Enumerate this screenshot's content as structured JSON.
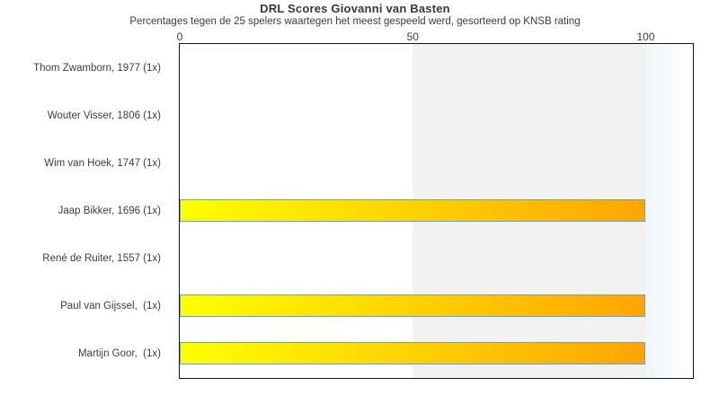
{
  "title": "DRL Scores Giovanni van Basten",
  "subtitle": "Percentages tegen de 25 spelers waartegen het meest gespeeld werd, gesorteerd op KNSB rating",
  "chart_data": {
    "type": "bar",
    "orientation": "horizontal",
    "title": "DRL Scores Giovanni van Basten",
    "subtitle": "Percentages tegen de 25 spelers waartegen het meest gespeeld werd, gesorteerd op KNSB rating",
    "categories": [
      "Thom Zwamborn, 1977 (1x)",
      "Wouter Visser, 1806 (1x)",
      "Wim van Hoek, 1747 (1x)",
      "Jaap Bikker, 1696 (1x)",
      "René de Ruiter, 1557 (1x)",
      "Paul van Gijssel,  (1x)",
      "Martijn Goor,  (1x)"
    ],
    "values": [
      0,
      0,
      0,
      100,
      0,
      100,
      100
    ],
    "x_ticks": [
      0,
      50,
      100
    ],
    "xlim": [
      0,
      110
    ],
    "xlabel": "",
    "ylabel": "",
    "grid": false,
    "legend": false,
    "tick_position": "top",
    "bands": [
      {
        "from": 0,
        "to": 50,
        "color": "#ffffff"
      },
      {
        "from": 50,
        "to": 100,
        "color": "#f2f2f2"
      },
      {
        "from": 100,
        "to": 110,
        "color": "gradient"
      }
    ],
    "band_right_gradient": [
      "#f0f6fa",
      "#fdfeff"
    ],
    "bar_gradient": [
      "#ffff00",
      "#ffa500"
    ],
    "bar_border_color": "#62a1d8",
    "plot_border_color": "#161616"
  }
}
